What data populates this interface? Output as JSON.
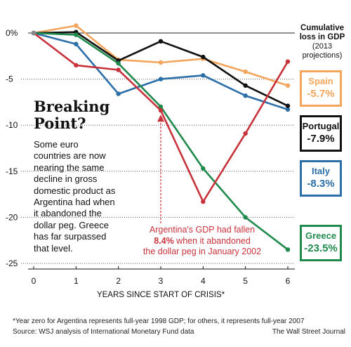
{
  "chart_data": {
    "type": "line",
    "title": "Breaking Point?",
    "description": "Some euro countries are now nearing the same decline in gross domestic product as Argentina had when it abandoned the dollar peg. Greece has far surpassed that level.",
    "xlabel": "YEARS SINCE START OF CRISIS*",
    "ylabel": "",
    "x": [
      0,
      1,
      2,
      3,
      4,
      5,
      6
    ],
    "x_ticks": [
      "0",
      "1",
      "2",
      "3",
      "4",
      "5",
      "6"
    ],
    "ylim": [
      -25,
      0
    ],
    "y_ticks": [
      0,
      -5,
      -10,
      -15,
      -20,
      -25
    ],
    "y_tick_labels": [
      "0%",
      "-5",
      "-10",
      "-15",
      "-20",
      "-25"
    ],
    "grid": "horizontal dotted",
    "legend_title": "Cumulative loss in GDP",
    "legend_subtitle": "(2013 projections)",
    "series": [
      {
        "name": "Argentina",
        "color": "#c8333b",
        "values": [
          0,
          -3.5,
          -4.0,
          -8.4,
          -18.3,
          -10.9,
          -3.1
        ]
      },
      {
        "name": "Spain",
        "color": "#f4a55c",
        "values": [
          0,
          0.8,
          -2.9,
          -3.2,
          -2.8,
          -4.2,
          -5.7
        ],
        "loss_label": "-5.7%"
      },
      {
        "name": "Portugal",
        "color": "#111111",
        "values": [
          0,
          0.1,
          -3.0,
          -0.9,
          -2.6,
          -5.7,
          -7.9
        ],
        "loss_label": "-7.9%"
      },
      {
        "name": "Italy",
        "color": "#2b6ea8",
        "values": [
          0,
          -1.2,
          -6.6,
          -5.0,
          -4.6,
          -6.8,
          -8.3
        ],
        "loss_label": "-8.3%"
      },
      {
        "name": "Greece",
        "color": "#1f8a4c",
        "values": [
          0,
          -0.2,
          -3.3,
          -8.0,
          -14.7,
          -20.0,
          -23.5
        ],
        "loss_label": "-23.5%"
      }
    ],
    "annotation": {
      "line1": "Argentina's GDP had fallen",
      "bold": "8.4%",
      "line2_rest": " when it abandoned",
      "line3": "the dollar peg in January 2002",
      "x": 3,
      "y": -8.4
    },
    "footnote": "*Year zero for Argentina represents full-year 1998 GDP; for others, it represents full-year 2007",
    "source": "Source: WSJ analysis of International Monetary Fund data",
    "credit": "The Wall Street Journal"
  }
}
